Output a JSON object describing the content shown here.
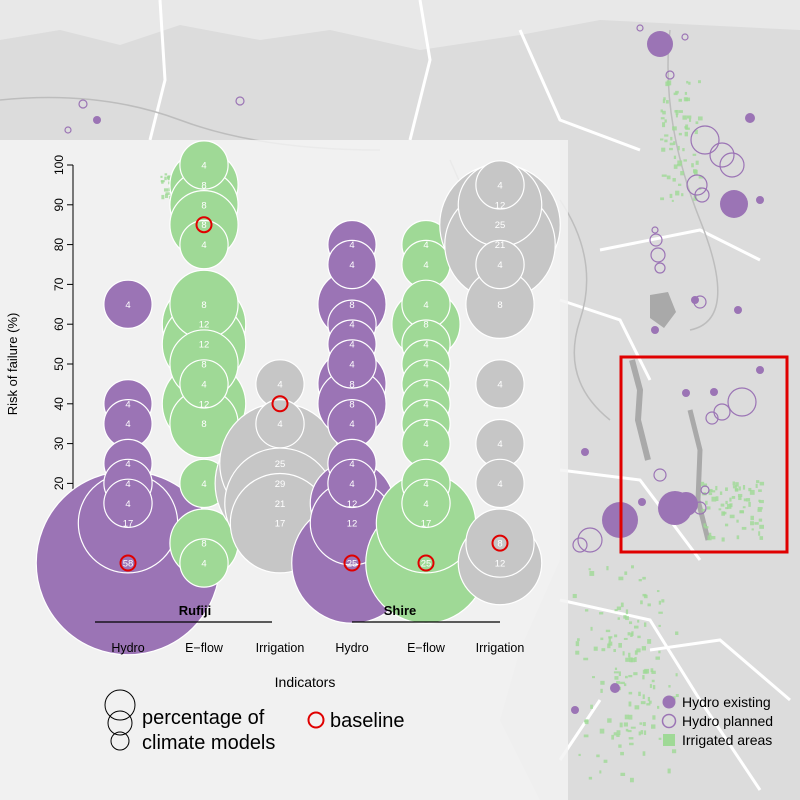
{
  "colors": {
    "hydro": "#9b74b5",
    "eflow": "#9fd996",
    "irrigation": "#c6c6c6",
    "baseline": "#e00000",
    "inset_border": "#e00000",
    "map_bg": "#e6e6e6",
    "panel_bg": "#f3f3f3",
    "land": "#d9d9d9",
    "irrigated": "#9fd996"
  },
  "chart_data": {
    "type": "scatter",
    "ylabel": "Risk of failure (%)",
    "xlabel": "Indicators",
    "ylim": [
      0,
      100
    ],
    "yticks": [
      0,
      10,
      20,
      30,
      40,
      50,
      60,
      70,
      80,
      90,
      100
    ],
    "categories": [
      "Hydro",
      "E−flow",
      "Irrigation",
      "Hydro",
      "E−flow",
      "Irrigation"
    ],
    "groups": [
      "Rufiji",
      "Shire"
    ],
    "series": [
      {
        "group": "Rufiji",
        "indicator": "Hydro",
        "color": "hydro",
        "baseline": 0,
        "points": [
          {
            "risk": 65,
            "pct": 4
          },
          {
            "risk": 40,
            "pct": 4
          },
          {
            "risk": 35,
            "pct": 4
          },
          {
            "risk": 25,
            "pct": 4
          },
          {
            "risk": 20,
            "pct": 4
          },
          {
            "risk": 15,
            "pct": 4
          },
          {
            "risk": 10,
            "pct": 17
          },
          {
            "risk": 0,
            "pct": 58
          }
        ]
      },
      {
        "group": "Rufiji",
        "indicator": "E−flow",
        "color": "eflow",
        "baseline": 85,
        "points": [
          {
            "risk": 100,
            "pct": 4
          },
          {
            "risk": 95,
            "pct": 8
          },
          {
            "risk": 90,
            "pct": 8
          },
          {
            "risk": 85,
            "pct": 8
          },
          {
            "risk": 80,
            "pct": 4
          },
          {
            "risk": 65,
            "pct": 8
          },
          {
            "risk": 60,
            "pct": 12
          },
          {
            "risk": 55,
            "pct": 12
          },
          {
            "risk": 50,
            "pct": 8
          },
          {
            "risk": 45,
            "pct": 4
          },
          {
            "risk": 40,
            "pct": 12
          },
          {
            "risk": 35,
            "pct": 8
          },
          {
            "risk": 20,
            "pct": 4
          },
          {
            "risk": 5,
            "pct": 8
          },
          {
            "risk": 0,
            "pct": 4
          }
        ]
      },
      {
        "group": "Rufiji",
        "indicator": "Irrigation",
        "color": "irrigation",
        "baseline": 40,
        "points": [
          {
            "risk": 45,
            "pct": 4
          },
          {
            "risk": 35,
            "pct": 4
          },
          {
            "risk": 25,
            "pct": 25
          },
          {
            "risk": 20,
            "pct": 29
          },
          {
            "risk": 15,
            "pct": 21
          },
          {
            "risk": 10,
            "pct": 17
          }
        ]
      },
      {
        "group": "Shire",
        "indicator": "Hydro",
        "color": "hydro",
        "baseline": 0,
        "points": [
          {
            "risk": 80,
            "pct": 4
          },
          {
            "risk": 75,
            "pct": 4
          },
          {
            "risk": 65,
            "pct": 8
          },
          {
            "risk": 60,
            "pct": 4
          },
          {
            "risk": 55,
            "pct": 4
          },
          {
            "risk": 50,
            "pct": 4
          },
          {
            "risk": 45,
            "pct": 8
          },
          {
            "risk": 40,
            "pct": 8
          },
          {
            "risk": 35,
            "pct": 4
          },
          {
            "risk": 25,
            "pct": 4
          },
          {
            "risk": 20,
            "pct": 4
          },
          {
            "risk": 15,
            "pct": 12
          },
          {
            "risk": 10,
            "pct": 12
          },
          {
            "risk": 0,
            "pct": 25
          }
        ]
      },
      {
        "group": "Shire",
        "indicator": "E−flow",
        "color": "eflow",
        "baseline": 0,
        "points": [
          {
            "risk": 80,
            "pct": 4
          },
          {
            "risk": 75,
            "pct": 4
          },
          {
            "risk": 65,
            "pct": 4
          },
          {
            "risk": 60,
            "pct": 8
          },
          {
            "risk": 55,
            "pct": 4
          },
          {
            "risk": 50,
            "pct": 4
          },
          {
            "risk": 45,
            "pct": 4
          },
          {
            "risk": 40,
            "pct": 4
          },
          {
            "risk": 35,
            "pct": 4
          },
          {
            "risk": 30,
            "pct": 4
          },
          {
            "risk": 20,
            "pct": 4
          },
          {
            "risk": 15,
            "pct": 4
          },
          {
            "risk": 10,
            "pct": 17
          },
          {
            "risk": 0,
            "pct": 25
          }
        ]
      },
      {
        "group": "Shire",
        "indicator": "Irrigation",
        "color": "irrigation",
        "baseline": 5,
        "points": [
          {
            "risk": 95,
            "pct": 4
          },
          {
            "risk": 90,
            "pct": 12
          },
          {
            "risk": 85,
            "pct": 25
          },
          {
            "risk": 80,
            "pct": 21
          },
          {
            "risk": 75,
            "pct": 4
          },
          {
            "risk": 65,
            "pct": 8
          },
          {
            "risk": 45,
            "pct": 4
          },
          {
            "risk": 30,
            "pct": 4
          },
          {
            "risk": 20,
            "pct": 4
          },
          {
            "risk": 5,
            "pct": 8
          },
          {
            "risk": 0,
            "pct": 12
          }
        ]
      }
    ]
  },
  "legend": {
    "size_label_line1": "percentage of",
    "size_label_line2": "climate models",
    "baseline_label": "baseline",
    "hydro_existing": "Hydro existing",
    "hydro_planned": "Hydro planned",
    "irrigated_areas": "Irrigated areas"
  }
}
